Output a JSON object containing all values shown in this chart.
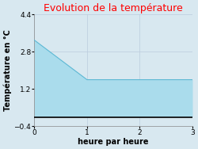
{
  "title": "Evolution de la température",
  "title_color": "#ff0000",
  "xlabel": "heure par heure",
  "ylabel": "Température en °C",
  "xlim": [
    0,
    3
  ],
  "ylim": [
    -0.4,
    4.4
  ],
  "xticks": [
    0,
    1,
    2,
    3
  ],
  "yticks": [
    -0.4,
    1.2,
    2.8,
    4.4
  ],
  "x": [
    0,
    1,
    2,
    3
  ],
  "y": [
    3.3,
    1.6,
    1.6,
    1.6
  ],
  "line_color": "#5bb8d4",
  "fill_color": "#aadcec",
  "fill_alpha": 1.0,
  "background_color": "#d8e8f0",
  "plot_bg_color": "#d8e8f0",
  "grid_color": "#bbccdd",
  "title_fontsize": 9,
  "label_fontsize": 7,
  "tick_fontsize": 6.5
}
